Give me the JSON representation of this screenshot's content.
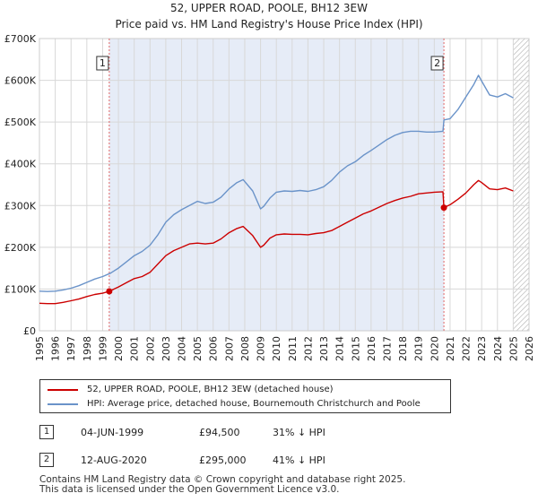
{
  "chart_data": {
    "type": "line",
    "title": "52, UPPER ROAD, POOLE, BH12 3EW",
    "subtitle": "Price paid vs. HM Land Registry's House Price Index (HPI)",
    "xlabel": "",
    "ylabel": "",
    "xlim": [
      1995,
      2026
    ],
    "ylim": [
      0,
      700000
    ],
    "x_ticks": [
      1995,
      1996,
      1997,
      1998,
      1999,
      2000,
      2001,
      2002,
      2003,
      2004,
      2005,
      2006,
      2007,
      2008,
      2009,
      2010,
      2011,
      2012,
      2013,
      2014,
      2015,
      2016,
      2017,
      2018,
      2019,
      2020,
      2021,
      2022,
      2023,
      2024,
      2025,
      2026
    ],
    "y_ticks": [
      {
        "value": 0,
        "label": "£0"
      },
      {
        "value": 100000,
        "label": "£100K"
      },
      {
        "value": 200000,
        "label": "£200K"
      },
      {
        "value": 300000,
        "label": "£300K"
      },
      {
        "value": 400000,
        "label": "£400K"
      },
      {
        "value": 500000,
        "label": "£500K"
      },
      {
        "value": 600000,
        "label": "£600K"
      },
      {
        "value": 700000,
        "label": "£700K"
      }
    ],
    "ownership_shade": {
      "from": 1999.42,
      "to": 2020.61,
      "color": "#e6ecf7"
    },
    "future_hatch_from": 2025.0,
    "series": [
      {
        "name": "52, UPPER ROAD, POOLE, BH12 3EW (detached house)",
        "color": "#cc0000",
        "x": [
          1995.0,
          1995.5,
          1996.0,
          1996.5,
          1997.0,
          1997.5,
          1998.0,
          1998.5,
          1999.0,
          1999.42,
          2000.0,
          2000.5,
          2001.0,
          2001.5,
          2002.0,
          2002.5,
          2003.0,
          2003.5,
          2004.0,
          2004.5,
          2005.0,
          2005.5,
          2006.0,
          2006.5,
          2007.0,
          2007.5,
          2007.9,
          2008.5,
          2009.0,
          2009.2,
          2009.6,
          2010.0,
          2010.5,
          2011.0,
          2011.5,
          2012.0,
          2012.5,
          2013.0,
          2013.5,
          2014.0,
          2014.5,
          2015.0,
          2015.5,
          2016.0,
          2016.5,
          2017.0,
          2017.5,
          2018.0,
          2018.5,
          2019.0,
          2019.5,
          2020.0,
          2020.55,
          2020.61,
          2021.0,
          2021.5,
          2022.0,
          2022.5,
          2022.8,
          2023.0,
          2023.5,
          2024.0,
          2024.5,
          2025.0
        ],
        "values": [
          66000,
          65000,
          65000,
          68000,
          72000,
          76000,
          82000,
          87000,
          90000,
          94500,
          105000,
          115000,
          125000,
          130000,
          140000,
          160000,
          180000,
          192000,
          200000,
          208000,
          210000,
          208000,
          210000,
          220000,
          235000,
          245000,
          250000,
          228000,
          200000,
          205000,
          222000,
          230000,
          232000,
          231000,
          231000,
          230000,
          233000,
          235000,
          240000,
          250000,
          260000,
          270000,
          280000,
          287000,
          296000,
          305000,
          312000,
          318000,
          322000,
          328000,
          330000,
          332000,
          333000,
          295000,
          302000,
          315000,
          330000,
          350000,
          360000,
          355000,
          340000,
          338000,
          342000,
          335000
        ]
      },
      {
        "name": "HPI: Average price, detached house, Bournemouth Christchurch and Poole",
        "color": "#6a93c9",
        "x": [
          1995.0,
          1995.5,
          1996.0,
          1996.5,
          1997.0,
          1997.5,
          1998.0,
          1998.5,
          1999.0,
          1999.5,
          2000.0,
          2000.5,
          2001.0,
          2001.5,
          2002.0,
          2002.5,
          2003.0,
          2003.5,
          2004.0,
          2004.5,
          2005.0,
          2005.5,
          2006.0,
          2006.5,
          2007.0,
          2007.5,
          2007.9,
          2008.5,
          2009.0,
          2009.2,
          2009.6,
          2010.0,
          2010.5,
          2011.0,
          2011.5,
          2012.0,
          2012.5,
          2013.0,
          2013.5,
          2014.0,
          2014.5,
          2015.0,
          2015.5,
          2016.0,
          2016.5,
          2017.0,
          2017.5,
          2018.0,
          2018.5,
          2019.0,
          2019.5,
          2020.0,
          2020.55,
          2020.61,
          2021.0,
          2021.5,
          2022.0,
          2022.5,
          2022.8,
          2023.0,
          2023.5,
          2024.0,
          2024.5,
          2025.0
        ],
        "values": [
          95000,
          94000,
          95000,
          98000,
          102000,
          108000,
          116000,
          124000,
          130000,
          138000,
          150000,
          165000,
          180000,
          190000,
          205000,
          230000,
          260000,
          278000,
          290000,
          300000,
          310000,
          305000,
          308000,
          320000,
          340000,
          355000,
          362000,
          335000,
          292000,
          298000,
          318000,
          332000,
          335000,
          334000,
          336000,
          334000,
          338000,
          345000,
          360000,
          380000,
          395000,
          405000,
          420000,
          432000,
          445000,
          458000,
          468000,
          475000,
          478000,
          478000,
          476000,
          476000,
          478000,
          505000,
          508000,
          530000,
          560000,
          590000,
          612000,
          598000,
          565000,
          560000,
          568000,
          558000
        ]
      }
    ],
    "sales": [
      {
        "marker": "1",
        "x": 1999.42,
        "value": 94500,
        "date": "04-JUN-1999",
        "price": "£94,500",
        "hpi_diff": "31% ↓ HPI"
      },
      {
        "marker": "2",
        "x": 2020.61,
        "value": 295000,
        "date": "12-AUG-2020",
        "price": "£295,000",
        "hpi_diff": "41% ↓ HPI"
      }
    ]
  },
  "legend": {
    "property_label": "52, UPPER ROAD, POOLE, BH12 3EW (detached house)",
    "hpi_label": "HPI: Average price, detached house, Bournemouth Christchurch and Poole",
    "property_color": "#cc0000",
    "hpi_color": "#6a93c9"
  },
  "footer": {
    "line1": "Contains HM Land Registry data © Crown copyright and database right 2025.",
    "line2": "This data is licensed under the Open Government Licence v3.0."
  }
}
